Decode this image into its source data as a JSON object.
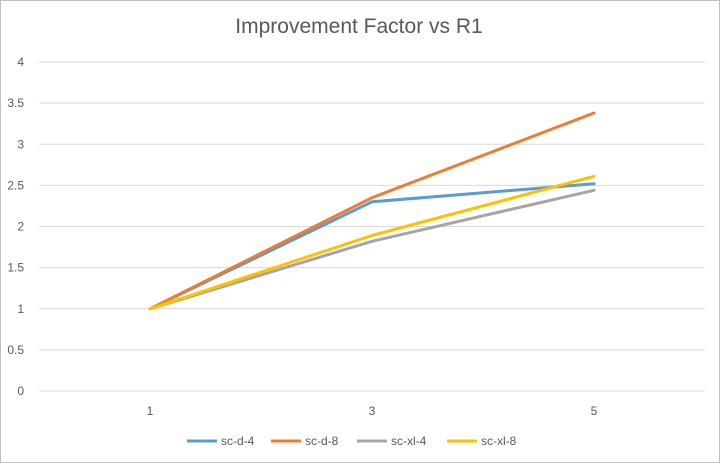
{
  "chart_data": {
    "type": "line",
    "title": "Improvement Factor vs R1",
    "xlabel": "",
    "ylabel": "",
    "categories": [
      "1",
      "3",
      "5"
    ],
    "ylim": [
      0,
      4
    ],
    "yticks": [
      0,
      0.5,
      1,
      1.5,
      2,
      2.5,
      3,
      3.5,
      4
    ],
    "grid": true,
    "legend_position": "bottom",
    "series": [
      {
        "name": "sc-d-4",
        "color": "#5b9bd5",
        "values": [
          1,
          2.3,
          2.52
        ]
      },
      {
        "name": "sc-d-8",
        "color": "#ed7d31",
        "values": [
          1,
          2.35,
          3.38
        ]
      },
      {
        "name": "sc-xl-4",
        "color": "#a5a5a5",
        "values": [
          1,
          1.82,
          2.44
        ]
      },
      {
        "name": "sc-xl-8",
        "color": "#ffc000",
        "values": [
          1,
          1.89,
          2.61
        ]
      }
    ]
  }
}
